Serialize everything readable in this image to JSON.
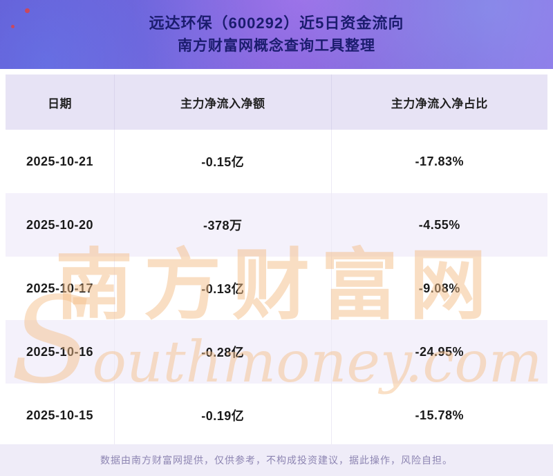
{
  "banner": {
    "title": "远达环保（600292）近5日资金流向",
    "subtitle": "南方财富网概念查询工具整理"
  },
  "chart_data": {
    "type": "table",
    "title": "远达环保（600292）近5日资金流向",
    "subtitle": "南方财富网概念查询工具整理",
    "columns": [
      "日期",
      "主力净流入净额",
      "主力净流入净占比"
    ],
    "rows": [
      [
        "2025-10-21",
        "-0.15亿",
        "-17.83%"
      ],
      [
        "2025-10-20",
        "-378万",
        "-4.55%"
      ],
      [
        "2025-10-17",
        "-0.13亿",
        "-9.08%"
      ],
      [
        "2025-10-16",
        "-0.28亿",
        "-24.95%"
      ],
      [
        "2025-10-15",
        "-0.19亿",
        "-15.78%"
      ]
    ]
  },
  "watermark": {
    "cn": "南方财富网",
    "en": "Southmoney.com"
  },
  "footer": {
    "disclaimer": "数据由南方财富网提供，仅供参考，不构成投资建议，据此操作，风险自担。"
  },
  "colors": {
    "banner_purple": "#7a5fd6",
    "title_navy": "#1b1c6e",
    "header_row_bg": "#e7e3f5",
    "alt_row_bg": "#f4f1fb",
    "watermark_orange": "#f4be87",
    "footer_bg": "#efecf8",
    "footer_text": "#8d85b2"
  }
}
